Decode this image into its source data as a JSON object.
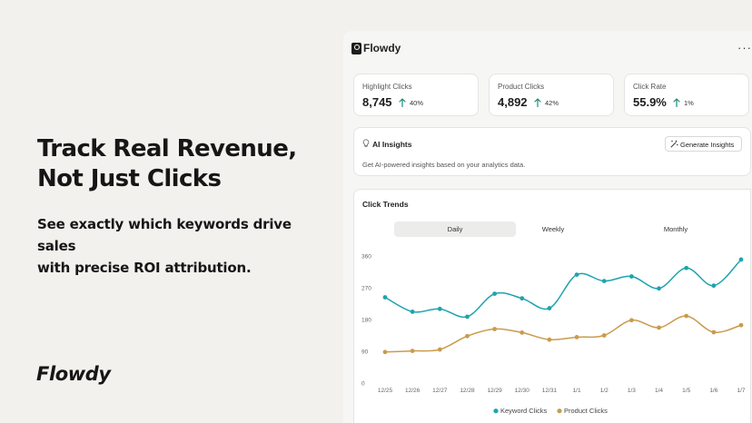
{
  "hero": {
    "title": "Track Real Revenue,\n Not Just Clicks",
    "subtitle": "See exactly which keywords drive sales\nwith precise ROI attribution.",
    "brand": "Flowdy"
  },
  "app": {
    "name": "Flowdy",
    "more_icon": "more-horizontal-icon",
    "stats": [
      {
        "label": "Highlight Clicks",
        "value": "8,745",
        "change": "40%",
        "trend": "up"
      },
      {
        "label": "Product Clicks",
        "value": "4,892",
        "change": "42%",
        "trend": "up"
      },
      {
        "label": "Click Rate",
        "value": "55.9%",
        "change": "1%",
        "trend": "up"
      }
    ],
    "insights": {
      "title": "AI Insights",
      "description": "Get AI-powered insights based on your analytics data.",
      "button_label": "Generate Insights",
      "icon": "lightbulb-icon",
      "button_icon": "magic-wand-icon"
    },
    "trends": {
      "title": "Click Trends",
      "tabs": [
        {
          "label": "Daily",
          "active": true
        },
        {
          "label": "Weekly",
          "active": false
        },
        {
          "label": "Monthly",
          "active": false
        }
      ]
    }
  },
  "colors": {
    "keyword": "#1ea3ae",
    "product": "#c99b4c",
    "up_arrow": "#1a8a7a"
  },
  "chart_data": {
    "type": "line",
    "categories": [
      "12/25",
      "12/26",
      "12/27",
      "12/28",
      "12/29",
      "12/30",
      "12/31",
      "1/1",
      "1/2",
      "1/3",
      "1/4",
      "1/5",
      "1/6",
      "1/7"
    ],
    "series": [
      {
        "name": "Keyword Clicks",
        "values": [
          243,
          202,
          210,
          188,
          253,
          240,
          212,
          307,
          289,
          302,
          268,
          326,
          276,
          350
        ]
      },
      {
        "name": "Product Clicks",
        "values": [
          88,
          91,
          95,
          133,
          153,
          143,
          123,
          130,
          135,
          178,
          157,
          190,
          144,
          164
        ]
      }
    ],
    "yticks": [
      0,
      90,
      180,
      270,
      360
    ],
    "ylim": [
      0,
      360
    ],
    "grid": false,
    "legend_position": "bottom"
  }
}
